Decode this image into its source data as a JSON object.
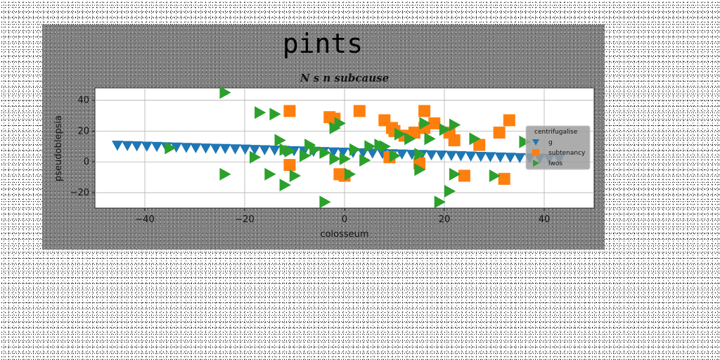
{
  "chart_data": {
    "type": "scatter",
    "suptitle": "pints",
    "title": "N s n subcause",
    "xlabel": "colosseum",
    "ylabel": "pseudoblepsia",
    "xlim": [
      -50,
      50
    ],
    "ylim": [
      -30,
      48
    ],
    "xticks": [
      -40,
      -20,
      0,
      20,
      40
    ],
    "yticks": [
      -20,
      0,
      20,
      40
    ],
    "xtick_labels": [
      "−40",
      "−20",
      "0",
      "20",
      "40"
    ],
    "ytick_labels": [
      "−20",
      "0",
      "20",
      "40"
    ],
    "grid": true,
    "legend": {
      "title": "centrifugalise",
      "placement": "right"
    },
    "series": [
      {
        "name": "g",
        "marker": "triangle-down",
        "color": "#1f77b4",
        "x": [
          -45.5,
          -43.5,
          -41.6,
          -39.6,
          -37.6,
          -35.7,
          -33.7,
          -31.7,
          -29.8,
          -27.8,
          -25.8,
          -23.9,
          -21.9,
          -19.9,
          -18.0,
          -16.0,
          -14.0,
          -12.1,
          -10.1,
          -8.1,
          -6.2,
          -4.2,
          -2.2,
          -0.3,
          1.7,
          3.7,
          5.6,
          7.6,
          9.6,
          11.5,
          13.5,
          15.5,
          17.4,
          19.4,
          21.4,
          23.3,
          25.3,
          27.3,
          29.2,
          31.2,
          33.2,
          35.1,
          37.1,
          39.1,
          41.0,
          43.0
        ],
        "y": [
          10.8,
          10.6,
          10.4,
          10.2,
          10.0,
          9.8,
          9.6,
          9.4,
          9.2,
          9.0,
          8.8,
          8.7,
          8.5,
          8.3,
          8.1,
          7.9,
          7.7,
          7.5,
          7.3,
          7.1,
          6.9,
          6.7,
          6.5,
          6.3,
          6.1,
          5.9,
          5.7,
          5.5,
          5.3,
          5.1,
          4.9,
          4.8,
          4.6,
          4.4,
          4.2,
          4.0,
          3.8,
          3.6,
          3.4,
          3.2,
          3.0,
          2.8,
          2.6,
          2.4,
          2.2,
          2.0
        ]
      },
      {
        "name": "subtenancy",
        "marker": "square",
        "color": "#ff7f0e",
        "x": [
          -11,
          3,
          -2,
          16,
          33,
          8,
          9.5,
          21,
          22,
          12,
          10,
          14,
          27,
          31,
          9,
          15,
          24,
          -11,
          0,
          -1,
          -3,
          32,
          18,
          16
        ],
        "y": [
          33,
          33,
          28,
          33,
          27,
          27,
          22,
          19,
          14,
          17,
          20,
          19,
          11,
          19,
          3,
          -1,
          -9,
          -2,
          -9,
          -8,
          29,
          -11,
          25,
          22
        ]
      },
      {
        "name": "lwos",
        "marker": "triangle-right",
        "color": "#2ca02c",
        "x": [
          -24,
          -17,
          -14,
          -13,
          -11,
          -7,
          -4,
          -1,
          2,
          5,
          8,
          11,
          15,
          17,
          22,
          26,
          -35,
          -24,
          -18,
          -15,
          -12,
          -10,
          -8,
          -6,
          -4,
          -2,
          0,
          4,
          7,
          10,
          13,
          16,
          20,
          22,
          30,
          36,
          -12,
          -2,
          1,
          15,
          21,
          19
        ],
        "y": [
          45,
          32,
          31,
          14,
          7,
          11,
          6,
          25,
          8,
          10,
          10,
          18,
          5,
          15,
          24,
          15,
          9,
          -8,
          3,
          -8,
          -15,
          -9,
          4,
          8,
          -26,
          22,
          2,
          1,
          11,
          4,
          15,
          25,
          21,
          -8,
          -9,
          13,
          8,
          2,
          -8,
          -5,
          -19,
          -26
        ]
      }
    ]
  }
}
